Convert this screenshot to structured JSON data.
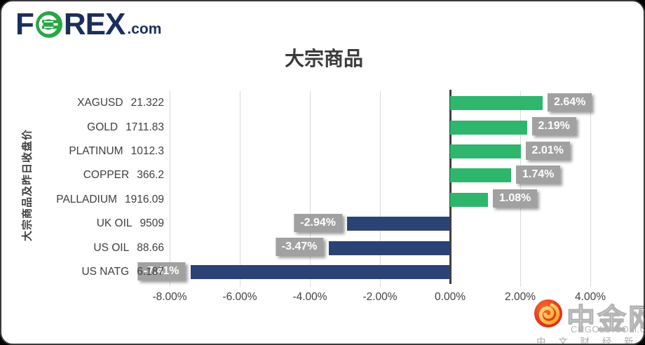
{
  "brand": {
    "f": "F",
    "rex": "REX",
    "suffix": ".com",
    "navy": "#1b2e5c",
    "green": "#28a745"
  },
  "header": {
    "title": "大宗商品"
  },
  "chart_data": {
    "type": "bar",
    "orientation": "horizontal",
    "title": "大宗商品",
    "ylabel": "大宗商品及昨日收盘价",
    "categories": [
      "XAGUSD",
      "GOLD",
      "PLATINUM",
      "COPPER",
      "PALLADIUM",
      "UK OIL",
      "US OIL",
      "US NATG"
    ],
    "close_values": [
      "21.322",
      "1711.83",
      "1012.3",
      "366.2",
      "1916.09",
      "9509",
      "88.66",
      "6.187"
    ],
    "pct_change": [
      2.64,
      2.19,
      2.01,
      1.74,
      1.08,
      -2.94,
      -3.47,
      -7.41
    ],
    "bar_labels": [
      "2.64%",
      "2.19%",
      "2.01%",
      "1.74%",
      "1.08%",
      "-2.94%",
      "-3.47%",
      "-7.41%"
    ],
    "tick_values": [
      -8,
      -6,
      -4,
      -2,
      0,
      2,
      4
    ],
    "tick_labels": [
      "-8.00%",
      "-6.00%",
      "-4.00%",
      "-2.00%",
      "0.00%",
      "2.00%",
      "4.00%"
    ],
    "xlim": [
      -9,
      5
    ],
    "grid": true,
    "legend": "none",
    "positive_color": "#2db66c",
    "negative_color": "#2b4374",
    "label_box_color": "#a1a1a1"
  },
  "watermark": {
    "name": "中金网",
    "url": "CNGOLD.COM.CN",
    "slogan": "中 文 财 经 新 媒 体"
  }
}
